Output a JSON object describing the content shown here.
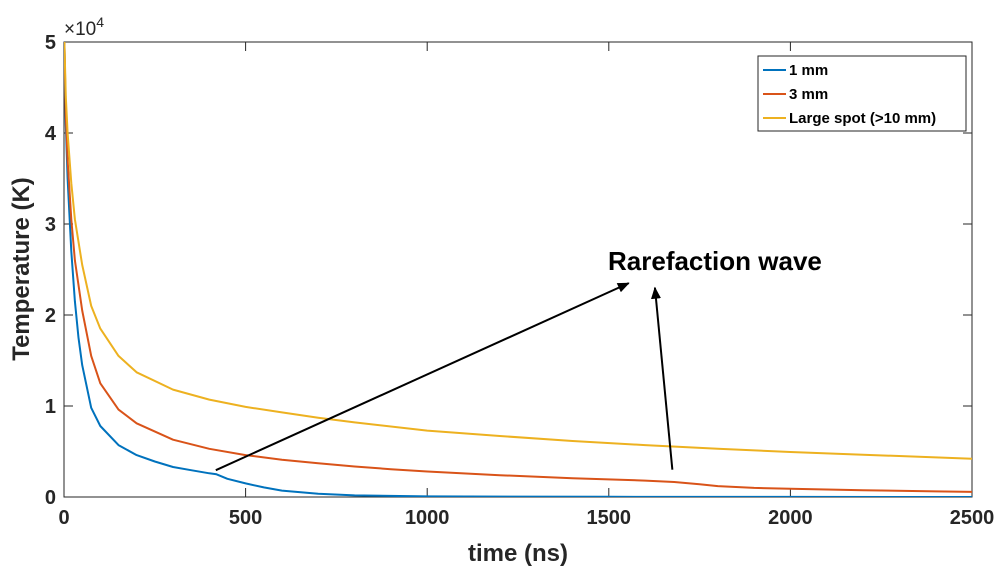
{
  "chart_data": {
    "type": "line",
    "title": "",
    "xlabel": "time (ns)",
    "ylabel": "Temperature (K)",
    "xlim": [
      0,
      2500
    ],
    "ylim": [
      0,
      50000
    ],
    "x_ticks": [
      0,
      500,
      1000,
      1500,
      2000,
      2500
    ],
    "y_ticks": [
      0,
      10000,
      20000,
      30000,
      40000,
      50000
    ],
    "y_tick_labels": [
      "0",
      "1",
      "2",
      "3",
      "4",
      "5"
    ],
    "y_multiplier_label": "×10",
    "y_multiplier_exponent": "4",
    "grid": false,
    "legend_position": "top-right",
    "series": [
      {
        "name": "1 mm",
        "color": "#0072BD",
        "points": [
          [
            1,
            50000
          ],
          [
            5,
            41000
          ],
          [
            10,
            35000
          ],
          [
            20,
            27000
          ],
          [
            30,
            21500
          ],
          [
            40,
            17500
          ],
          [
            50,
            14500
          ],
          [
            75,
            9800
          ],
          [
            100,
            7800
          ],
          [
            150,
            5700
          ],
          [
            200,
            4600
          ],
          [
            250,
            3900
          ],
          [
            300,
            3300
          ],
          [
            350,
            2950
          ],
          [
            400,
            2600
          ],
          [
            420,
            2500
          ],
          [
            450,
            2000
          ],
          [
            500,
            1500
          ],
          [
            550,
            1050
          ],
          [
            600,
            700
          ],
          [
            700,
            350
          ],
          [
            800,
            180
          ],
          [
            1000,
            70
          ],
          [
            1500,
            20
          ],
          [
            2000,
            10
          ],
          [
            2500,
            5
          ]
        ]
      },
      {
        "name": "3 mm",
        "color": "#D95319",
        "points": [
          [
            1,
            50000
          ],
          [
            5,
            42000
          ],
          [
            10,
            37000
          ],
          [
            20,
            30500
          ],
          [
            30,
            26000
          ],
          [
            50,
            20500
          ],
          [
            75,
            15500
          ],
          [
            100,
            12500
          ],
          [
            150,
            9600
          ],
          [
            200,
            8100
          ],
          [
            300,
            6300
          ],
          [
            400,
            5300
          ],
          [
            500,
            4600
          ],
          [
            600,
            4100
          ],
          [
            700,
            3700
          ],
          [
            800,
            3350
          ],
          [
            900,
            3050
          ],
          [
            1000,
            2800
          ],
          [
            1200,
            2400
          ],
          [
            1400,
            2050
          ],
          [
            1600,
            1800
          ],
          [
            1680,
            1650
          ],
          [
            1750,
            1400
          ],
          [
            1800,
            1200
          ],
          [
            1900,
            1000
          ],
          [
            2000,
            900
          ],
          [
            2200,
            750
          ],
          [
            2400,
            620
          ],
          [
            2500,
            560
          ]
        ]
      },
      {
        "name": "Large spot (>10 mm)",
        "color": "#EDB120",
        "points": [
          [
            1,
            50000
          ],
          [
            5,
            44000
          ],
          [
            10,
            40000
          ],
          [
            20,
            34500
          ],
          [
            30,
            30500
          ],
          [
            50,
            25500
          ],
          [
            75,
            21000
          ],
          [
            100,
            18500
          ],
          [
            150,
            15500
          ],
          [
            200,
            13700
          ],
          [
            300,
            11800
          ],
          [
            400,
            10700
          ],
          [
            500,
            9900
          ],
          [
            600,
            9300
          ],
          [
            700,
            8700
          ],
          [
            800,
            8200
          ],
          [
            1000,
            7300
          ],
          [
            1200,
            6700
          ],
          [
            1400,
            6150
          ],
          [
            1600,
            5700
          ],
          [
            1800,
            5300
          ],
          [
            2000,
            4950
          ],
          [
            2200,
            4650
          ],
          [
            2400,
            4350
          ],
          [
            2500,
            4200
          ]
        ]
      }
    ],
    "annotations": [
      {
        "text": "Rarefaction wave",
        "arrows": [
          {
            "from": [
              418,
              2950
            ],
            "to": [
              1555,
              23500
            ]
          },
          {
            "from": [
              1675,
              3000
            ],
            "to": [
              1627,
              23000
            ]
          }
        ]
      }
    ]
  }
}
